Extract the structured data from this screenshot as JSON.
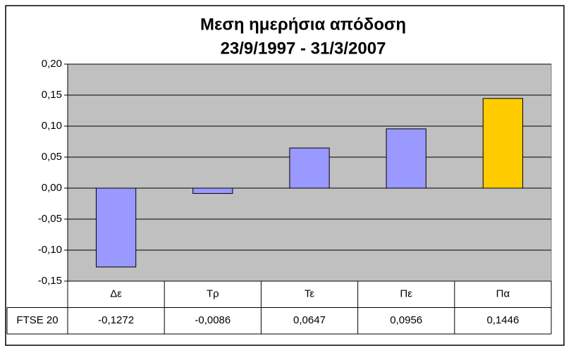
{
  "chart_data": {
    "type": "bar",
    "title": "Μεση ημερήσια απόδοση",
    "subtitle": "23/9/1997 - 31/3/2007",
    "categories": [
      "Δε",
      "Τρ",
      "Τε",
      "Πε",
      "Πα"
    ],
    "series": [
      {
        "name": "FTSE 20",
        "color": "#9999ff",
        "colors": [
          "#9999ff",
          "#9999ff",
          "#9999ff",
          "#9999ff",
          "#ffcc00"
        ],
        "values": [
          -0.1272,
          -0.0086,
          0.0647,
          0.0956,
          0.1446
        ],
        "value_labels": [
          "-0,1272",
          "-0,0086",
          "0,0647",
          "0,0956",
          "0,1446"
        ]
      }
    ],
    "ylim": [
      -0.15,
      0.2
    ],
    "yticks": [
      {
        "value": -0.15,
        "label": "-0,15"
      },
      {
        "value": -0.1,
        "label": "-0,10"
      },
      {
        "value": -0.05,
        "label": "-0,05"
      },
      {
        "value": 0,
        "label": "0,00"
      },
      {
        "value": 0.05,
        "label": "0,05"
      },
      {
        "value": 0.1,
        "label": "0,10"
      },
      {
        "value": 0.15,
        "label": "0,15"
      },
      {
        "value": 0.2,
        "label": "0,20"
      }
    ],
    "grid": true,
    "data_table": true
  }
}
